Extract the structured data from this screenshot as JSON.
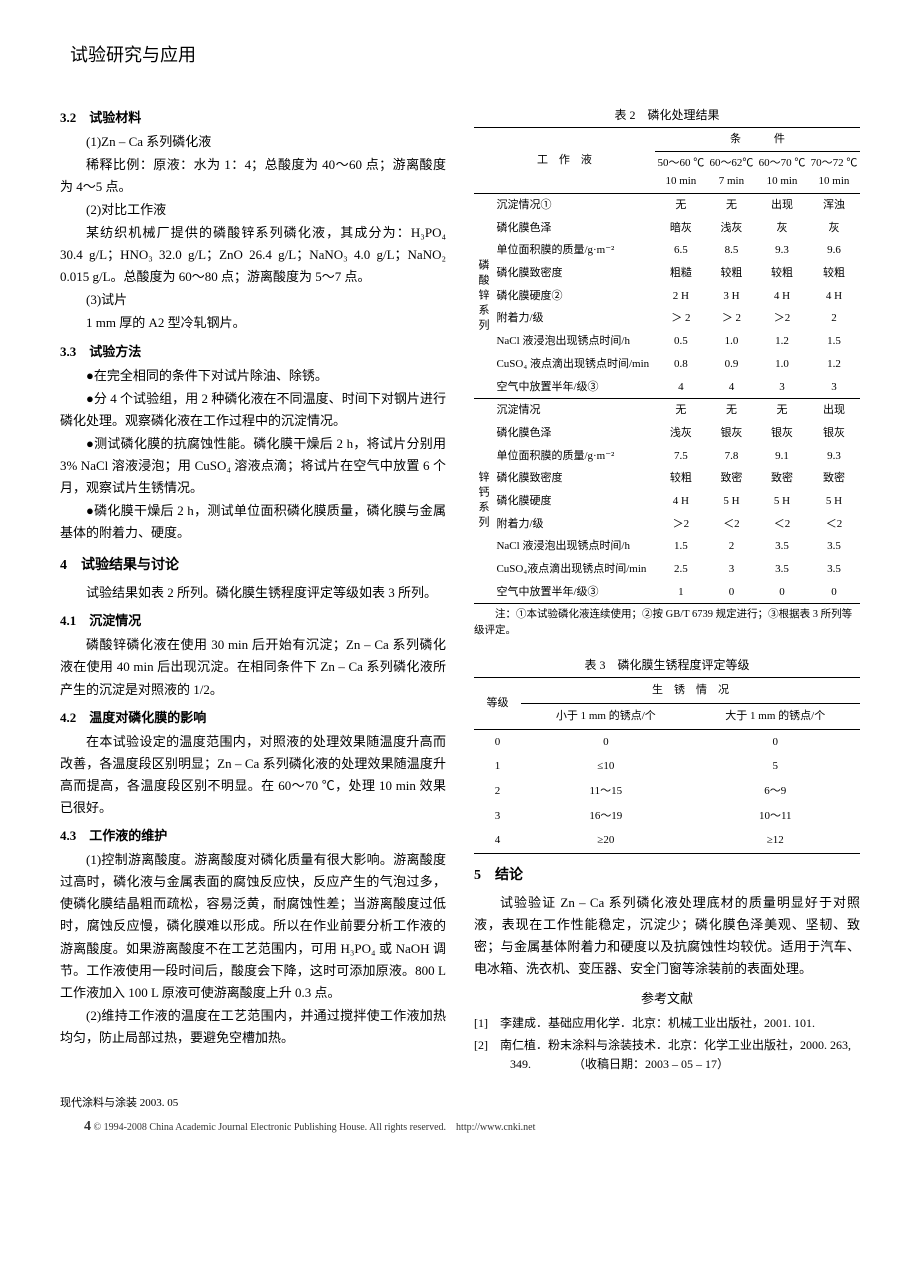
{
  "header": {
    "title": "试验研究与应用"
  },
  "left": {
    "s3_2": {
      "num": "3.2",
      "title": "试验材料",
      "p1": "(1)Zn – Ca 系列磷化液",
      "p2": "稀释比例：原液：水为 1：4；总酸度为 40～60 点；游离酸度为 4～5 点。",
      "p3": "(2)对比工作液",
      "p4": "某纺织机械厂提供的磷酸锌系列磷化液，其成分为：H₃PO₄ 30.4 g/L；HNO₃ 32.0 g/L；ZnO 26.4 g/L；NaNO₃ 4.0 g/L；NaNO₂ 0.015 g/L。总酸度为 60～80 点；游离酸度为 5～7 点。",
      "p5": "(3)试片",
      "p6": "1 mm 厚的 A2 型冷轧钢片。"
    },
    "s3_3": {
      "num": "3.3",
      "title": "试验方法",
      "b1": "●在完全相同的条件下对试片除油、除锈。",
      "b2": "●分 4 个试验组，用 2 种磷化液在不同温度、时间下对钢片进行磷化处理。观察磷化液在工作过程中的沉淀情况。",
      "b3": "●测试磷化膜的抗腐蚀性能。磷化膜干燥后 2 h，将试片分别用 3% NaCl 溶液浸泡；用 CuSO₄ 溶液点滴；将试片在空气中放置 6 个月，观察试片生锈情况。",
      "b4": "●磷化膜干燥后 2 h，测试单位面积磷化膜质量，磷化膜与金属基体的附着力、硬度。"
    },
    "s4": {
      "num": "4",
      "title": "试验结果与讨论",
      "p1": "试验结果如表 2 所列。磷化膜生锈程度评定等级如表 3 所列。"
    },
    "s4_1": {
      "num": "4.1",
      "title": "沉淀情况",
      "p1": "磷酸锌磷化液在使用 30 min 后开始有沉淀；Zn – Ca 系列磷化液在使用 40 min 后出现沉淀。在相同条件下 Zn – Ca 系列磷化液所产生的沉淀是对照液的 1/2。"
    },
    "s4_2": {
      "num": "4.2",
      "title": "温度对磷化膜的影响",
      "p1": "在本试验设定的温度范围内，对照液的处理效果随温度升高而改善，各温度段区别明显；Zn – Ca 系列磷化液的处理效果随温度升高而提高，各温度段区别不明显。在 60～70 ℃，处理 10 min 效果已很好。"
    },
    "s4_3": {
      "num": "4.3",
      "title": "工作液的维护",
      "p1": "(1)控制游离酸度。游离酸度对磷化质量有很大影响。游离酸度过高时，磷化液与金属表面的腐蚀反应快，反应产生的气泡过多，使磷化膜结晶粗而疏松，容易泛黄，耐腐蚀性差；当游离酸度过低时，腐蚀反应慢，磷化膜难以形成。所以在作业前要分析工作液的游离酸度。如果游离酸度不在工艺范围内，可用 H₃PO₄ 或 NaOH 调节。工作液使用一段时间后，酸度会下降，这时可添加原液。800 L 工作液加入 100 L 原液可使游离酸度上升 0.3 点。",
      "p2": "(2)维持工作液的温度在工艺范围内，并通过搅拌使工作液加热均匀，防止局部过热，要避免空槽加热。"
    }
  },
  "table2": {
    "caption": "表 2　磷化处理结果",
    "colhead": {
      "gzy": "工　作　液",
      "tj": "条　　　件",
      "c1a": "50～60 ℃",
      "c1b": "10 min",
      "c2a": "60～62℃",
      "c2b": "7 min",
      "c3a": "60～70 ℃",
      "c3b": "10 min",
      "c4a": "70～72 ℃",
      "c4b": "10 min"
    },
    "group1": "磷酸锌系列",
    "group2": "锌钙系列",
    "rows1": [
      {
        "label": "沉淀情况①",
        "v": [
          "无",
          "无",
          "出现",
          "浑浊"
        ]
      },
      {
        "label": "磷化膜色泽",
        "v": [
          "暗灰",
          "浅灰",
          "灰",
          "灰"
        ]
      },
      {
        "label": "单位面积膜的质量/g·m⁻²",
        "v": [
          "6.5",
          "8.5",
          "9.3",
          "9.6"
        ]
      },
      {
        "label": "磷化膜致密度",
        "v": [
          "粗糙",
          "较粗",
          "较粗",
          "较粗"
        ]
      },
      {
        "label": "磷化膜硬度②",
        "v": [
          "2 H",
          "3 H",
          "4 H",
          "4 H"
        ]
      },
      {
        "label": "附着力/级",
        "v": [
          "＞ 2",
          "＞ 2",
          "＞2",
          "2"
        ]
      },
      {
        "label": "NaCl 液浸泡出现锈点时间/h",
        "v": [
          "0.5",
          "1.0",
          "1.2",
          "1.5"
        ]
      },
      {
        "label": "CuSO₄ 液点滴出现锈点时间/min",
        "v": [
          "0.8",
          "0.9",
          "1.0",
          "1.2"
        ]
      },
      {
        "label": "空气中放置半年/级③",
        "v": [
          "4",
          "4",
          "3",
          "3"
        ]
      }
    ],
    "rows2": [
      {
        "label": "沉淀情况",
        "v": [
          "无",
          "无",
          "无",
          "出现"
        ]
      },
      {
        "label": "磷化膜色泽",
        "v": [
          "浅灰",
          "银灰",
          "银灰",
          "银灰"
        ]
      },
      {
        "label": "单位面积膜的质量/g·m⁻²",
        "v": [
          "7.5",
          "7.8",
          "9.1",
          "9.3"
        ]
      },
      {
        "label": "磷化膜致密度",
        "v": [
          "较粗",
          "致密",
          "致密",
          "致密"
        ]
      },
      {
        "label": "磷化膜硬度",
        "v": [
          "4 H",
          "5 H",
          "5 H",
          "5 H"
        ]
      },
      {
        "label": "附着力/级",
        "v": [
          "＞2",
          "＜2",
          "＜2",
          "＜2"
        ]
      },
      {
        "label": "NaCl 液浸泡出现锈点时间/h",
        "v": [
          "1.5",
          "2",
          "3.5",
          "3.5"
        ]
      },
      {
        "label": "CuSO₄液点滴出现锈点时间/min",
        "v": [
          "2.5",
          "3",
          "3.5",
          "3.5"
        ]
      },
      {
        "label": "空气中放置半年/级③",
        "v": [
          "1",
          "0",
          "0",
          "0"
        ]
      }
    ],
    "note": "注：①本试验磷化液连续使用；②按 GB/T 6739 规定进行；③根据表 3 所列等级评定。"
  },
  "table3": {
    "caption": "表 3　磷化膜生锈程度评定等级",
    "h1": "等级",
    "h2": "生　锈　情　况",
    "h2a": "小于 1 mm 的锈点/个",
    "h2b": "大于 1 mm 的锈点/个",
    "rows": [
      {
        "g": "0",
        "a": "0",
        "b": "0"
      },
      {
        "g": "1",
        "a": "≤10",
        "b": "5"
      },
      {
        "g": "2",
        "a": "11～15",
        "b": "6～9"
      },
      {
        "g": "3",
        "a": "16～19",
        "b": "10～11"
      },
      {
        "g": "4",
        "a": "≥20",
        "b": "≥12"
      }
    ]
  },
  "s5": {
    "num": "5",
    "title": "结论",
    "p1": "试验验证 Zn – Ca 系列磷化液处理底材的质量明显好于对照液，表现在工作性能稳定，沉淀少；磷化膜色泽美观、坚韧、致密；与金属基体附着力和硬度以及抗腐蚀性均较优。适用于汽车、电冰箱、洗衣机、变压器、安全门窗等涂装前的表面处理。"
  },
  "refs": {
    "title": "参考文献",
    "r1": "[1]　李建成．基础应用化学．北京：机械工业出版社，2001. 101.",
    "r2": "[2]　南仁植．粉末涂料与涂装技术．北京：化学工业出版社，2000. 263, 349.　　　　（收稿日期：2003 – 05 – 17）"
  },
  "footer": {
    "line1": "现代涂料与涂装 2003. 05",
    "line2": "© 1994-2008 China Academic Journal Electronic Publishing House. All rights reserved.　http://www.cnki.net",
    "page": "4"
  }
}
